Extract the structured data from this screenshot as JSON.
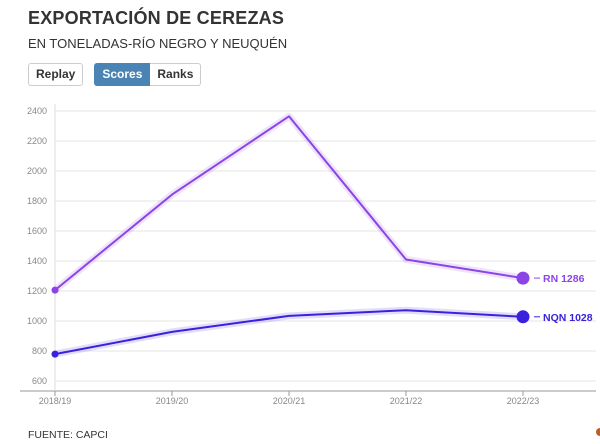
{
  "header": {
    "title": "EXPORTACIÓN DE CEREZAS",
    "subtitle": "EN TONELADAS-RÍO NEGRO Y NEUQUÉN"
  },
  "controls": {
    "replay_label": "Replay",
    "scores_label": "Scores",
    "ranks_label": "Ranks"
  },
  "footer": {
    "source": "FUENTE: CAPCI"
  },
  "chart_data": {
    "type": "line",
    "categories": [
      "2018/19",
      "2019/20",
      "2020/21",
      "2021/22",
      "2022/23"
    ],
    "series": [
      {
        "name": "RN",
        "values": [
          1206,
          1843,
          2365,
          1410,
          1286
        ],
        "color": "#8b45e6",
        "end_label": "RN 1286"
      },
      {
        "name": "NQN",
        "values": [
          779,
          927,
          1034,
          1072,
          1028
        ],
        "color": "#3a22dd",
        "end_label": "NQN 1028"
      }
    ],
    "y_ticks": [
      600,
      800,
      1000,
      1200,
      1400,
      1600,
      1800,
      2000,
      2200,
      2400
    ],
    "ylim": [
      560,
      2450
    ],
    "grid": true,
    "legend": "end-of-line labels"
  }
}
